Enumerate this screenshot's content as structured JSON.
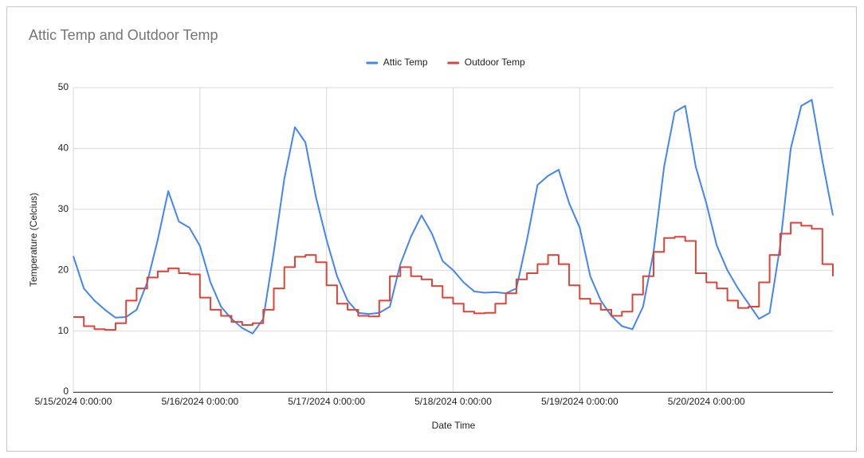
{
  "chart_data": {
    "type": "line",
    "title": "Attic Temp and Outdoor Temp",
    "x_label": "Date Time",
    "y_label": "Temperature (Celcius)",
    "x": [
      "5/15/2024 0:00:00",
      "5/15/2024 2:00:00",
      "5/15/2024 4:00:00",
      "5/15/2024 6:00:00",
      "5/15/2024 8:00:00",
      "5/15/2024 10:00:00",
      "5/15/2024 12:00:00",
      "5/15/2024 14:00:00",
      "5/15/2024 16:00:00",
      "5/15/2024 18:00:00",
      "5/15/2024 20:00:00",
      "5/15/2024 22:00:00",
      "5/16/2024 0:00:00",
      "5/16/2024 2:00:00",
      "5/16/2024 4:00:00",
      "5/16/2024 6:00:00",
      "5/16/2024 8:00:00",
      "5/16/2024 10:00:00",
      "5/16/2024 12:00:00",
      "5/16/2024 14:00:00",
      "5/16/2024 16:00:00",
      "5/16/2024 18:00:00",
      "5/16/2024 20:00:00",
      "5/16/2024 22:00:00",
      "5/17/2024 0:00:00",
      "5/17/2024 2:00:00",
      "5/17/2024 4:00:00",
      "5/17/2024 6:00:00",
      "5/17/2024 8:00:00",
      "5/17/2024 10:00:00",
      "5/17/2024 12:00:00",
      "5/17/2024 14:00:00",
      "5/17/2024 16:00:00",
      "5/17/2024 18:00:00",
      "5/17/2024 20:00:00",
      "5/17/2024 22:00:00",
      "5/18/2024 0:00:00",
      "5/18/2024 2:00:00",
      "5/18/2024 4:00:00",
      "5/18/2024 6:00:00",
      "5/18/2024 8:00:00",
      "5/18/2024 10:00:00",
      "5/18/2024 12:00:00",
      "5/18/2024 14:00:00",
      "5/18/2024 16:00:00",
      "5/18/2024 18:00:00",
      "5/18/2024 20:00:00",
      "5/18/2024 22:00:00",
      "5/19/2024 0:00:00",
      "5/19/2024 2:00:00",
      "5/19/2024 4:00:00",
      "5/19/2024 6:00:00",
      "5/19/2024 8:00:00",
      "5/19/2024 10:00:00",
      "5/19/2024 12:00:00",
      "5/19/2024 14:00:00",
      "5/19/2024 16:00:00",
      "5/19/2024 18:00:00",
      "5/19/2024 20:00:00",
      "5/19/2024 22:00:00",
      "5/20/2024 0:00:00",
      "5/20/2024 2:00:00",
      "5/20/2024 4:00:00",
      "5/20/2024 6:00:00",
      "5/20/2024 8:00:00",
      "5/20/2024 10:00:00",
      "5/20/2024 12:00:00",
      "5/20/2024 14:00:00",
      "5/20/2024 16:00:00",
      "5/20/2024 18:00:00",
      "5/20/2024 20:00:00",
      "5/20/2024 22:00:00",
      "5/21/2024 0:00:00"
    ],
    "series": [
      {
        "name": "Attic Temp",
        "color": "#4285f4",
        "step": false,
        "values": [
          22.3,
          17,
          15,
          13.5,
          12.2,
          12.3,
          13.5,
          18,
          25,
          33,
          28,
          27,
          24,
          18,
          14,
          12,
          10.5,
          9.6,
          12,
          23,
          35,
          43.5,
          41,
          32,
          25,
          19,
          15,
          13,
          12.8,
          13,
          14,
          21,
          25.5,
          29,
          26,
          21.5,
          20,
          18,
          16.5,
          16.3,
          16.4,
          16.2,
          17,
          25,
          34,
          35.5,
          36.5,
          31,
          27,
          19,
          15,
          12.5,
          10.8,
          10.3,
          14,
          23,
          37,
          46,
          47,
          37,
          31,
          24,
          20,
          17,
          14.5,
          12,
          13,
          24,
          40,
          47,
          48,
          38,
          29
        ]
      },
      {
        "name": "Outdoor Temp",
        "color": "#db4437",
        "step": true,
        "values": [
          12.3,
          10.8,
          10.3,
          10.2,
          11.3,
          15,
          17,
          18.8,
          19.8,
          20.3,
          19.5,
          19.3,
          15.5,
          13.5,
          12.5,
          11.5,
          11,
          11.3,
          13.5,
          17,
          20.5,
          22.2,
          22.5,
          21.3,
          17.5,
          14.5,
          13.5,
          12.5,
          12.4,
          15,
          19,
          20.5,
          19,
          18.5,
          17.4,
          15.5,
          14.5,
          13.2,
          12.9,
          13,
          14.5,
          16.2,
          18.5,
          19.5,
          21,
          22.5,
          21,
          17.5,
          15.3,
          14.5,
          13.5,
          12.5,
          13.2,
          16,
          19,
          23,
          25.3,
          25.5,
          24.8,
          19.5,
          18,
          17,
          15,
          13.8,
          14,
          18,
          22.5,
          26,
          27.8,
          27.3,
          26.8,
          21,
          19
        ]
      }
    ],
    "xlim": [
      "5/15/2024 0:00:00",
      "5/21/2024 0:00:00"
    ],
    "xticks": [
      "5/15/2024 0:00:00",
      "5/16/2024 0:00:00",
      "5/17/2024 0:00:00",
      "5/18/2024 0:00:00",
      "5/19/2024 0:00:00",
      "5/20/2024 0:00:00"
    ],
    "ylim": [
      0,
      50
    ],
    "yticks": [
      0,
      10,
      20,
      30,
      40,
      50
    ],
    "grid": true,
    "legend": "top"
  }
}
